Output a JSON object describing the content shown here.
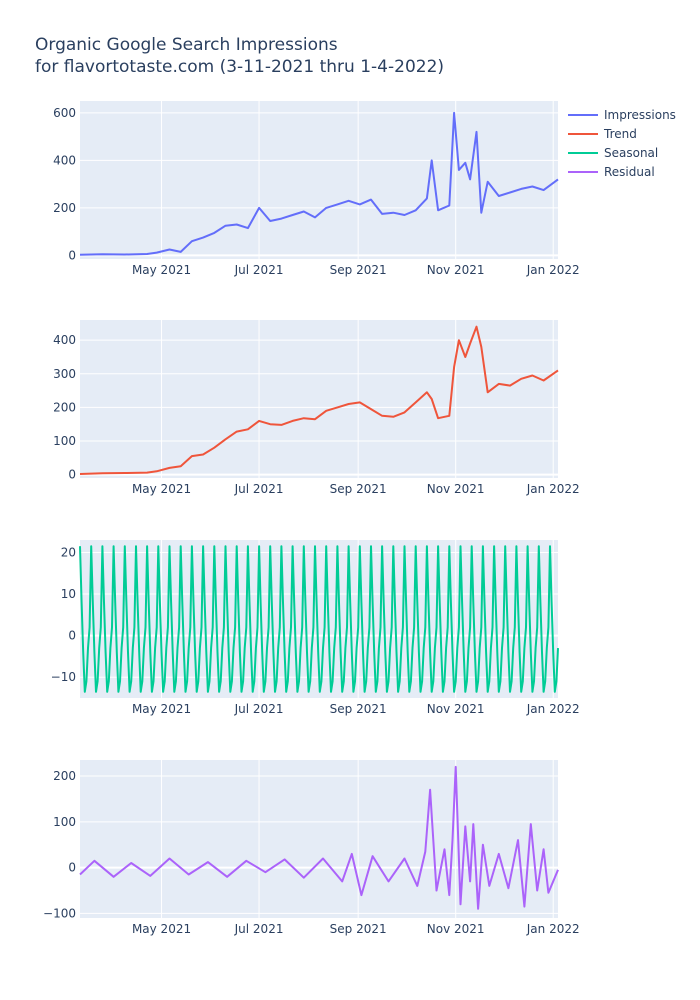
{
  "title": {
    "line1": "Organic Google Search Impressions",
    "line2": "for flavortotaste.com (3-11-2021 thru 1-4-2022)"
  },
  "legend": [
    {
      "label": "Impressions",
      "color": "#636efa"
    },
    {
      "label": "Trend",
      "color": "#ef553b"
    },
    {
      "label": "Seasonal",
      "color": "#00cc96"
    },
    {
      "label": "Residual",
      "color": "#ab63fa"
    }
  ],
  "chart_data": [
    {
      "type": "line",
      "name": "Impressions",
      "color": "#636efa",
      "x_range": [
        "2021-03-11",
        "2022-01-04"
      ],
      "x_ticks": [
        "May 2021",
        "Jul 2021",
        "Sep 2021",
        "Nov 2021",
        "Jan 2022"
      ],
      "x_tick_dates": [
        "2021-05-01",
        "2021-07-01",
        "2021-09-01",
        "2021-11-01",
        "2022-01-01"
      ],
      "ylim": [
        -15,
        650
      ],
      "y_ticks": [
        0,
        200,
        400,
        600
      ],
      "x": [
        "2021-03-11",
        "2021-03-25",
        "2021-04-08",
        "2021-04-22",
        "2021-04-28",
        "2021-05-06",
        "2021-05-13",
        "2021-05-20",
        "2021-05-27",
        "2021-06-03",
        "2021-06-10",
        "2021-06-17",
        "2021-06-24",
        "2021-07-01",
        "2021-07-08",
        "2021-07-15",
        "2021-07-22",
        "2021-07-29",
        "2021-08-05",
        "2021-08-12",
        "2021-08-19",
        "2021-08-26",
        "2021-09-02",
        "2021-09-09",
        "2021-09-16",
        "2021-09-23",
        "2021-09-30",
        "2021-10-07",
        "2021-10-14",
        "2021-10-17",
        "2021-10-21",
        "2021-10-28",
        "2021-10-31",
        "2021-11-03",
        "2021-11-07",
        "2021-11-10",
        "2021-11-14",
        "2021-11-17",
        "2021-11-21",
        "2021-11-28",
        "2021-12-05",
        "2021-12-12",
        "2021-12-19",
        "2021-12-26",
        "2022-01-04"
      ],
      "y": [
        3,
        5,
        4,
        6,
        12,
        25,
        15,
        60,
        75,
        95,
        125,
        130,
        115,
        200,
        145,
        155,
        170,
        185,
        160,
        200,
        215,
        230,
        215,
        235,
        175,
        180,
        170,
        190,
        240,
        400,
        190,
        210,
        600,
        360,
        390,
        320,
        520,
        180,
        310,
        250,
        265,
        280,
        290,
        275,
        320
      ]
    },
    {
      "type": "line",
      "name": "Trend",
      "color": "#ef553b",
      "x_range": [
        "2021-03-11",
        "2022-01-04"
      ],
      "x_ticks": [
        "May 2021",
        "Jul 2021",
        "Sep 2021",
        "Nov 2021",
        "Jan 2022"
      ],
      "x_tick_dates": [
        "2021-05-01",
        "2021-07-01",
        "2021-09-01",
        "2021-11-01",
        "2022-01-01"
      ],
      "ylim": [
        -10,
        460
      ],
      "y_ticks": [
        0,
        100,
        200,
        300,
        400
      ],
      "x": [
        "2021-03-11",
        "2021-03-25",
        "2021-04-08",
        "2021-04-22",
        "2021-04-28",
        "2021-05-06",
        "2021-05-13",
        "2021-05-20",
        "2021-05-27",
        "2021-06-03",
        "2021-06-10",
        "2021-06-17",
        "2021-06-24",
        "2021-07-01",
        "2021-07-08",
        "2021-07-15",
        "2021-07-22",
        "2021-07-29",
        "2021-08-05",
        "2021-08-12",
        "2021-08-19",
        "2021-08-26",
        "2021-09-02",
        "2021-09-09",
        "2021-09-16",
        "2021-09-23",
        "2021-09-30",
        "2021-10-07",
        "2021-10-14",
        "2021-10-17",
        "2021-10-21",
        "2021-10-28",
        "2021-10-31",
        "2021-11-03",
        "2021-11-07",
        "2021-11-10",
        "2021-11-14",
        "2021-11-17",
        "2021-11-21",
        "2021-11-28",
        "2021-12-05",
        "2021-12-12",
        "2021-12-19",
        "2021-12-26",
        "2022-01-04"
      ],
      "y": [
        2,
        4,
        5,
        6,
        10,
        20,
        25,
        55,
        60,
        80,
        105,
        128,
        135,
        160,
        150,
        148,
        160,
        168,
        165,
        190,
        200,
        210,
        215,
        195,
        175,
        172,
        185,
        215,
        245,
        225,
        168,
        175,
        320,
        400,
        350,
        390,
        440,
        380,
        245,
        270,
        265,
        285,
        295,
        280,
        310
      ]
    },
    {
      "type": "line",
      "name": "Seasonal",
      "color": "#00cc96",
      "x_range": [
        "2021-03-11",
        "2022-01-04"
      ],
      "x_ticks": [
        "May 2021",
        "Jul 2021",
        "Sep 2021",
        "Nov 2021",
        "Jan 2022"
      ],
      "x_tick_dates": [
        "2021-05-01",
        "2021-07-01",
        "2021-09-01",
        "2021-11-01",
        "2022-01-01"
      ],
      "ylim": [
        -15,
        23
      ],
      "y_ticks": [
        -10,
        0,
        10,
        20
      ],
      "period_days": 7,
      "max": 21.5,
      "min": -13.5,
      "weekly_pattern": [
        21.5,
        8,
        -4,
        -13.5,
        -11,
        -3,
        2
      ]
    },
    {
      "type": "line",
      "name": "Residual",
      "color": "#ab63fa",
      "x_range": [
        "2021-03-11",
        "2022-01-04"
      ],
      "x_ticks": [
        "May 2021",
        "Jul 2021",
        "Sep 2021",
        "Nov 2021",
        "Jan 2022"
      ],
      "x_tick_dates": [
        "2021-05-01",
        "2021-07-01",
        "2021-09-01",
        "2021-11-01",
        "2022-01-01"
      ],
      "ylim": [
        -110,
        235
      ],
      "y_ticks": [
        -100,
        0,
        100,
        200
      ],
      "x": [
        "2021-03-11",
        "2021-03-20",
        "2021-04-01",
        "2021-04-12",
        "2021-04-24",
        "2021-05-06",
        "2021-05-18",
        "2021-05-30",
        "2021-06-11",
        "2021-06-23",
        "2021-07-05",
        "2021-07-17",
        "2021-07-29",
        "2021-08-10",
        "2021-08-22",
        "2021-08-28",
        "2021-09-03",
        "2021-09-10",
        "2021-09-20",
        "2021-09-30",
        "2021-10-08",
        "2021-10-13",
        "2021-10-16",
        "2021-10-20",
        "2021-10-25",
        "2021-10-28",
        "2021-10-30",
        "2021-11-01",
        "2021-11-04",
        "2021-11-07",
        "2021-11-10",
        "2021-11-12",
        "2021-11-15",
        "2021-11-18",
        "2021-11-22",
        "2021-11-28",
        "2021-12-04",
        "2021-12-10",
        "2021-12-14",
        "2021-12-18",
        "2021-12-22",
        "2021-12-26",
        "2021-12-29",
        "2022-01-04"
      ],
      "y": [
        -15,
        15,
        -20,
        10,
        -18,
        20,
        -15,
        12,
        -20,
        15,
        -10,
        18,
        -22,
        20,
        -30,
        30,
        -60,
        25,
        -30,
        20,
        -40,
        35,
        170,
        -50,
        40,
        -60,
        60,
        220,
        -80,
        90,
        -30,
        95,
        -90,
        50,
        -40,
        30,
        -45,
        60,
        -85,
        95,
        -50,
        40,
        -55,
        -5
      ]
    }
  ]
}
